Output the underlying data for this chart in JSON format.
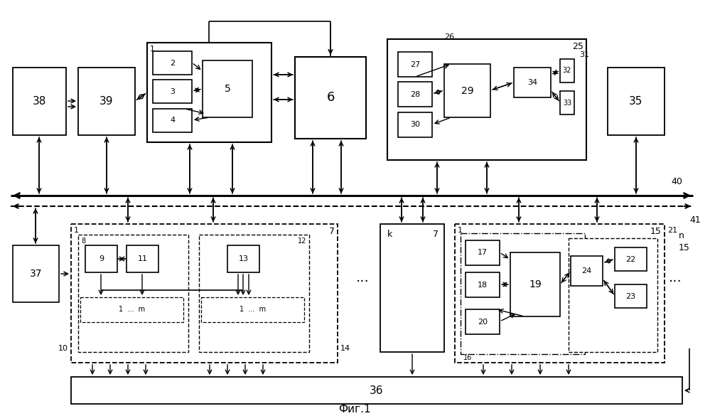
{
  "title": "Фиг.1",
  "bg_color": "#ffffff",
  "fig_width": 9.99,
  "fig_height": 5.85,
  "dpi": 100
}
